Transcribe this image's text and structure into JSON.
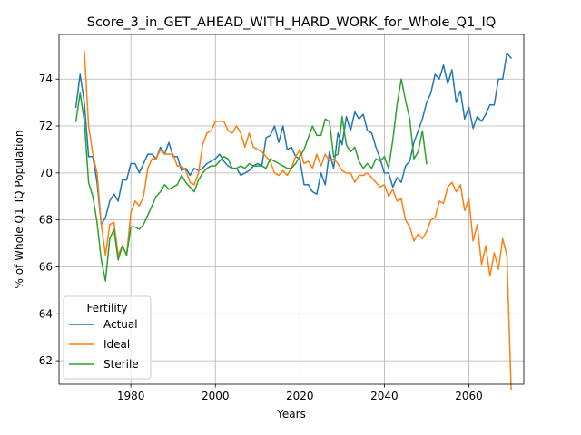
{
  "chart_data": {
    "type": "line",
    "title": "Score_3_in_GET_AHEAD_WITH_HARD_WORK_for_Whole_Q1_IQ",
    "xlabel": "Years",
    "ylabel": "% of Whole Q1_IQ Population",
    "xlim": [
      1963,
      2073
    ],
    "ylim": [
      61.0,
      75.9
    ],
    "xticks": [
      1980,
      2000,
      2020,
      2040,
      2060
    ],
    "yticks": [
      62,
      64,
      66,
      68,
      70,
      72,
      74
    ],
    "grid": true,
    "legend": {
      "title": "Fertility",
      "position": "lower-left"
    },
    "series": [
      {
        "name": "Actual",
        "color": "#1f77b4",
        "points": [
          [
            1967,
            72.8
          ],
          [
            1968,
            74.2
          ],
          [
            1969,
            73.0
          ],
          [
            1970,
            70.7
          ],
          [
            1971,
            70.7
          ],
          [
            1972,
            69.6
          ],
          [
            1973,
            67.8
          ],
          [
            1974,
            68.1
          ],
          [
            1975,
            68.8
          ],
          [
            1976,
            69.1
          ],
          [
            1977,
            68.8
          ],
          [
            1978,
            69.7
          ],
          [
            1979,
            69.7
          ],
          [
            1980,
            70.4
          ],
          [
            1981,
            70.4
          ],
          [
            1982,
            70.0
          ],
          [
            1983,
            70.4
          ],
          [
            1984,
            70.8
          ],
          [
            1985,
            70.8
          ],
          [
            1986,
            70.6
          ],
          [
            1987,
            71.1
          ],
          [
            1988,
            70.8
          ],
          [
            1989,
            71.3
          ],
          [
            1990,
            70.7
          ],
          [
            1991,
            70.7
          ],
          [
            1992,
            70.1
          ],
          [
            1993,
            70.2
          ],
          [
            1994,
            69.9
          ],
          [
            1995,
            70.2
          ],
          [
            1996,
            70.1
          ],
          [
            1997,
            70.2
          ],
          [
            1998,
            70.4
          ],
          [
            1999,
            70.5
          ],
          [
            2000,
            70.6
          ],
          [
            2001,
            70.8
          ],
          [
            2002,
            70.5
          ],
          [
            2003,
            70.3
          ],
          [
            2004,
            70.2
          ],
          [
            2005,
            70.2
          ],
          [
            2006,
            69.9
          ],
          [
            2007,
            70.0
          ],
          [
            2008,
            70.1
          ],
          [
            2009,
            70.3
          ],
          [
            2010,
            70.4
          ],
          [
            2011,
            70.3
          ],
          [
            2012,
            71.5
          ],
          [
            2013,
            71.6
          ],
          [
            2014,
            72.0
          ],
          [
            2015,
            71.3
          ],
          [
            2016,
            72.0
          ],
          [
            2017,
            71.0
          ],
          [
            2018,
            71.1
          ],
          [
            2019,
            70.7
          ],
          [
            2020,
            70.6
          ],
          [
            2021,
            69.5
          ],
          [
            2022,
            69.5
          ],
          [
            2023,
            69.2
          ],
          [
            2024,
            69.1
          ],
          [
            2025,
            70.0
          ],
          [
            2026,
            69.5
          ],
          [
            2027,
            70.9
          ],
          [
            2028,
            70.2
          ],
          [
            2029,
            71.7
          ],
          [
            2030,
            71.2
          ],
          [
            2031,
            72.4
          ],
          [
            2032,
            71.8
          ],
          [
            2033,
            72.6
          ],
          [
            2034,
            72.3
          ],
          [
            2035,
            72.5
          ],
          [
            2036,
            71.8
          ],
          [
            2037,
            71.7
          ],
          [
            2038,
            71.1
          ],
          [
            2039,
            70.6
          ],
          [
            2040,
            70.0
          ],
          [
            2041,
            70.0
          ],
          [
            2042,
            69.4
          ],
          [
            2043,
            69.8
          ],
          [
            2044,
            69.6
          ],
          [
            2045,
            70.3
          ],
          [
            2046,
            70.5
          ],
          [
            2047,
            71.3
          ],
          [
            2048,
            71.8
          ],
          [
            2049,
            72.3
          ],
          [
            2050,
            73.0
          ],
          [
            2051,
            73.4
          ],
          [
            2052,
            74.2
          ],
          [
            2053,
            74.0
          ],
          [
            2054,
            74.6
          ],
          [
            2055,
            73.8
          ],
          [
            2056,
            74.4
          ],
          [
            2057,
            73.0
          ],
          [
            2058,
            73.5
          ],
          [
            2059,
            72.3
          ],
          [
            2060,
            72.8
          ],
          [
            2061,
            71.9
          ],
          [
            2062,
            72.4
          ],
          [
            2063,
            72.2
          ],
          [
            2064,
            72.5
          ],
          [
            2065,
            72.9
          ],
          [
            2066,
            72.9
          ],
          [
            2067,
            74.0
          ],
          [
            2068,
            74.0
          ],
          [
            2069,
            75.1
          ],
          [
            2070,
            74.9
          ]
        ]
      },
      {
        "name": "Ideal",
        "color": "#ff7f0e",
        "points": [
          [
            1967,
            null
          ],
          [
            1968,
            null
          ],
          [
            1969,
            75.2
          ],
          [
            1970,
            72.0
          ],
          [
            1971,
            70.8
          ],
          [
            1972,
            70.0
          ],
          [
            1973,
            67.8
          ],
          [
            1974,
            66.5
          ],
          [
            1975,
            67.8
          ],
          [
            1976,
            67.9
          ],
          [
            1977,
            66.5
          ],
          [
            1978,
            66.9
          ],
          [
            1979,
            66.5
          ],
          [
            1980,
            68.3
          ],
          [
            1981,
            68.8
          ],
          [
            1982,
            68.6
          ],
          [
            1983,
            69.0
          ],
          [
            1984,
            70.2
          ],
          [
            1985,
            70.6
          ],
          [
            1986,
            70.6
          ],
          [
            1987,
            71.0
          ],
          [
            1988,
            70.8
          ],
          [
            1989,
            70.8
          ],
          [
            1990,
            70.8
          ],
          [
            1991,
            70.3
          ],
          [
            1992,
            70.3
          ],
          [
            1993,
            70.1
          ],
          [
            1994,
            69.6
          ],
          [
            1995,
            69.5
          ],
          [
            1996,
            70.0
          ],
          [
            1997,
            71.2
          ],
          [
            1998,
            71.7
          ],
          [
            1999,
            71.8
          ],
          [
            2000,
            72.2
          ],
          [
            2001,
            72.2
          ],
          [
            2002,
            72.2
          ],
          [
            2003,
            71.8
          ],
          [
            2004,
            71.7
          ],
          [
            2005,
            72.0
          ],
          [
            2006,
            71.7
          ],
          [
            2007,
            71.1
          ],
          [
            2008,
            71.7
          ],
          [
            2009,
            71.1
          ],
          [
            2010,
            71.0
          ],
          [
            2011,
            70.9
          ],
          [
            2012,
            70.7
          ],
          [
            2013,
            70.5
          ],
          [
            2014,
            70.0
          ],
          [
            2015,
            69.9
          ],
          [
            2016,
            70.1
          ],
          [
            2017,
            69.9
          ],
          [
            2018,
            70.2
          ],
          [
            2019,
            70.7
          ],
          [
            2020,
            71.0
          ],
          [
            2021,
            70.4
          ],
          [
            2022,
            70.5
          ],
          [
            2023,
            70.2
          ],
          [
            2024,
            70.8
          ],
          [
            2025,
            70.3
          ],
          [
            2026,
            70.8
          ],
          [
            2027,
            70.5
          ],
          [
            2028,
            70.6
          ],
          [
            2029,
            70.4
          ],
          [
            2030,
            70.1
          ],
          [
            2031,
            70.0
          ],
          [
            2032,
            70.0
          ],
          [
            2033,
            69.6
          ],
          [
            2034,
            69.9
          ],
          [
            2035,
            69.9
          ],
          [
            2036,
            70.0
          ],
          [
            2037,
            69.8
          ],
          [
            2038,
            69.6
          ],
          [
            2039,
            69.4
          ],
          [
            2040,
            69.5
          ],
          [
            2041,
            69.0
          ],
          [
            2042,
            69.3
          ],
          [
            2043,
            68.8
          ],
          [
            2044,
            68.9
          ],
          [
            2045,
            68.0
          ],
          [
            2046,
            67.7
          ],
          [
            2047,
            67.1
          ],
          [
            2048,
            67.4
          ],
          [
            2049,
            67.2
          ],
          [
            2050,
            67.5
          ],
          [
            2051,
            68.0
          ],
          [
            2052,
            68.1
          ],
          [
            2053,
            68.8
          ],
          [
            2054,
            68.7
          ],
          [
            2055,
            69.4
          ],
          [
            2056,
            69.6
          ],
          [
            2057,
            69.2
          ],
          [
            2058,
            69.5
          ],
          [
            2059,
            68.4
          ],
          [
            2060,
            68.9
          ],
          [
            2061,
            67.1
          ],
          [
            2062,
            67.8
          ],
          [
            2063,
            66.1
          ],
          [
            2064,
            66.9
          ],
          [
            2065,
            65.6
          ],
          [
            2066,
            66.6
          ],
          [
            2067,
            65.9
          ],
          [
            2068,
            67.2
          ],
          [
            2069,
            66.5
          ],
          [
            2070,
            60.8
          ]
        ]
      },
      {
        "name": "Sterile",
        "color": "#2ca02c",
        "points": [
          [
            1967,
            72.2
          ],
          [
            1968,
            73.4
          ],
          [
            1969,
            72.2
          ],
          [
            1970,
            69.6
          ],
          [
            1971,
            69.0
          ],
          [
            1972,
            67.9
          ],
          [
            1973,
            66.3
          ],
          [
            1974,
            65.4
          ],
          [
            1975,
            67.2
          ],
          [
            1976,
            67.6
          ],
          [
            1977,
            66.3
          ],
          [
            1978,
            66.9
          ],
          [
            1979,
            66.5
          ],
          [
            1980,
            67.7
          ],
          [
            1981,
            67.7
          ],
          [
            1982,
            67.6
          ],
          [
            1983,
            67.8
          ],
          [
            1984,
            68.2
          ],
          [
            1985,
            68.6
          ],
          [
            1986,
            69.0
          ],
          [
            1987,
            69.2
          ],
          [
            1988,
            69.5
          ],
          [
            1989,
            69.3
          ],
          [
            1990,
            69.4
          ],
          [
            1991,
            69.5
          ],
          [
            1992,
            69.9
          ],
          [
            1993,
            69.6
          ],
          [
            1994,
            69.4
          ],
          [
            1995,
            69.2
          ],
          [
            1996,
            69.7
          ],
          [
            1997,
            70.0
          ],
          [
            1998,
            70.2
          ],
          [
            1999,
            70.3
          ],
          [
            2000,
            70.3
          ],
          [
            2001,
            70.5
          ],
          [
            2002,
            70.7
          ],
          [
            2003,
            70.6
          ],
          [
            2004,
            70.2
          ],
          [
            2005,
            70.2
          ],
          [
            2006,
            70.3
          ],
          [
            2007,
            70.2
          ],
          [
            2008,
            70.4
          ],
          [
            2009,
            70.3
          ],
          [
            2010,
            70.3
          ],
          [
            2011,
            70.3
          ],
          [
            2012,
            70.2
          ],
          [
            2013,
            70.6
          ],
          [
            2014,
            70.5
          ],
          [
            2015,
            70.4
          ],
          [
            2016,
            70.3
          ],
          [
            2017,
            70.2
          ],
          [
            2018,
            70.2
          ],
          [
            2019,
            70.4
          ],
          [
            2020,
            70.7
          ],
          [
            2021,
            71.0
          ],
          [
            2022,
            71.5
          ],
          [
            2023,
            72.0
          ],
          [
            2024,
            71.6
          ],
          [
            2025,
            71.6
          ],
          [
            2026,
            72.3
          ],
          [
            2027,
            72.2
          ],
          [
            2028,
            70.7
          ],
          [
            2029,
            70.8
          ],
          [
            2030,
            72.4
          ],
          [
            2031,
            71.2
          ],
          [
            2032,
            70.9
          ],
          [
            2033,
            71.1
          ],
          [
            2034,
            70.5
          ],
          [
            2035,
            70.2
          ],
          [
            2036,
            70.4
          ],
          [
            2037,
            70.2
          ],
          [
            2038,
            70.6
          ],
          [
            2039,
            70.5
          ],
          [
            2040,
            70.7
          ],
          [
            2041,
            70.2
          ],
          [
            2042,
            71.4
          ],
          [
            2043,
            72.9
          ],
          [
            2044,
            74.0
          ],
          [
            2045,
            73.1
          ],
          [
            2046,
            72.3
          ],
          [
            2047,
            70.6
          ],
          [
            2048,
            70.9
          ],
          [
            2049,
            71.8
          ],
          [
            2050,
            70.4
          ]
        ]
      }
    ]
  }
}
